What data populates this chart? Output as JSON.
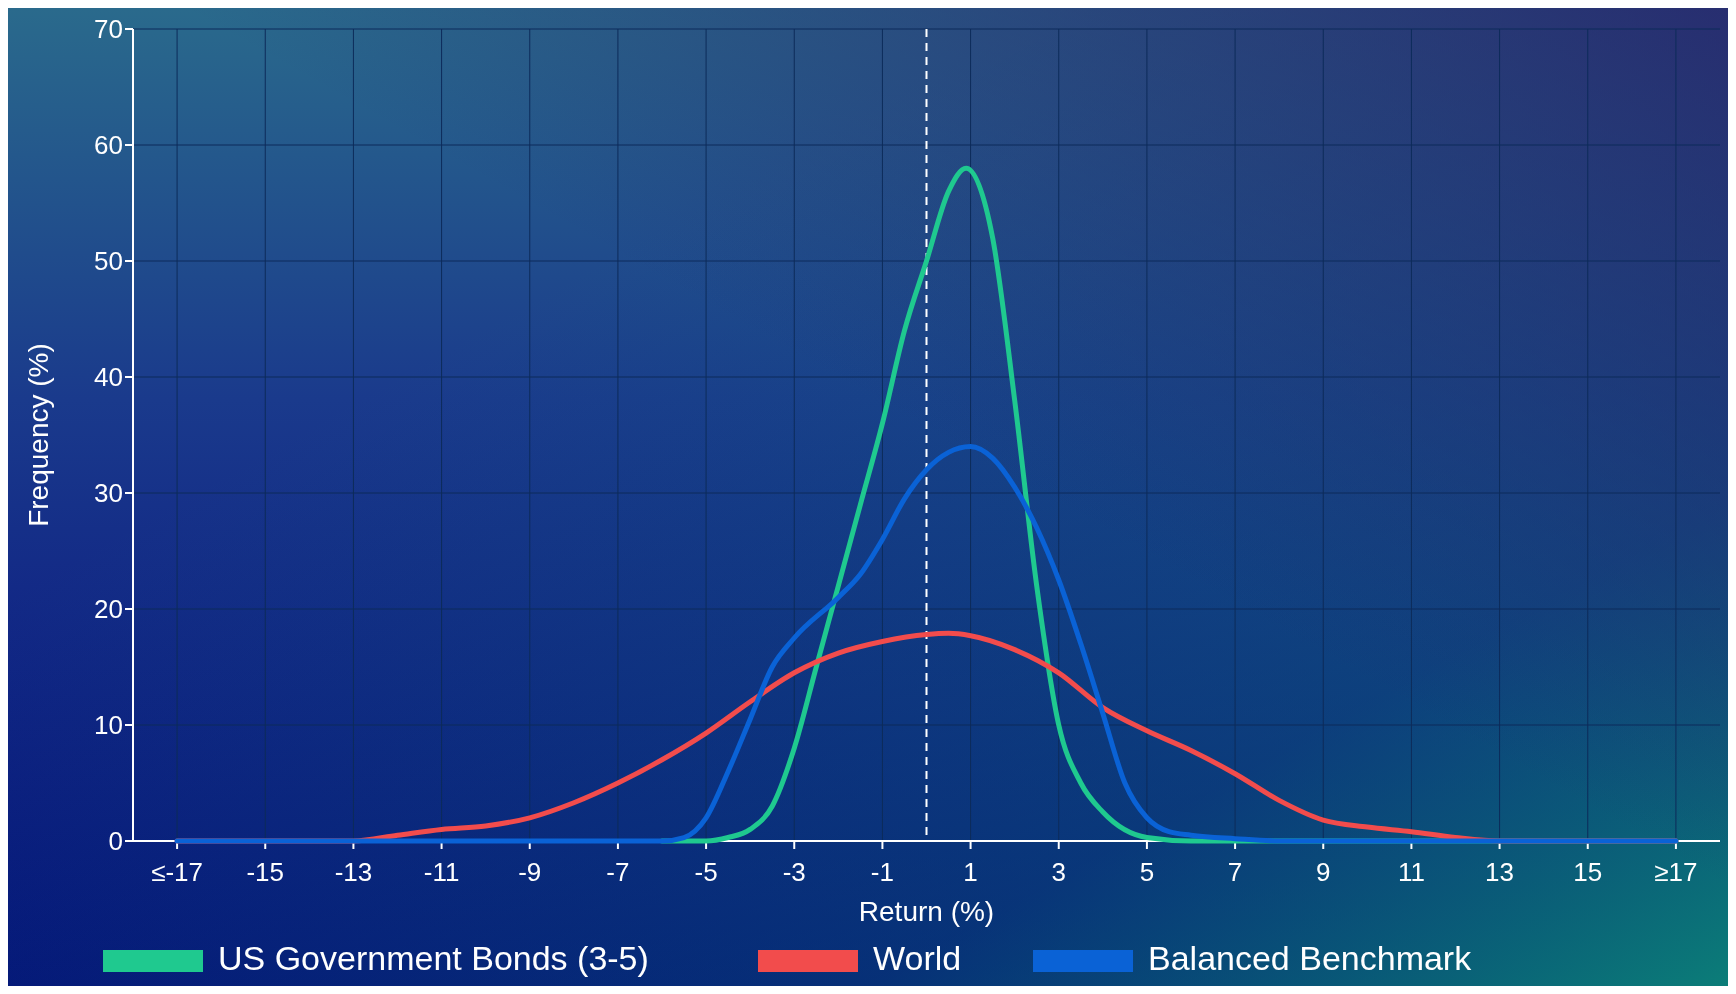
{
  "chart_data": {
    "type": "line",
    "xlabel": "Return (%)",
    "ylabel": "Frequency (%)",
    "xlim": [
      -18,
      18
    ],
    "ylim": [
      0,
      70
    ],
    "yticks": [
      0,
      10,
      20,
      30,
      40,
      50,
      60,
      70
    ],
    "xticks": [
      {
        "value": -17,
        "label": "≤-17"
      },
      -15,
      -13,
      -11,
      -9,
      -7,
      -5,
      -3,
      -1,
      1,
      3,
      5,
      7,
      9,
      11,
      13,
      15,
      {
        "value": 17,
        "label": "≥17"
      }
    ],
    "grid": true,
    "legend": "bottom",
    "line_style": "solid",
    "marker": "none",
    "ref_lines": [
      {
        "axis": "x",
        "value": 0,
        "color": "#ffffff",
        "line_style": "dashed"
      }
    ],
    "series": [
      {
        "name": "US Government Bonds (3-5)",
        "color": "#1fc98f",
        "x": [
          -6,
          -5,
          -4.5,
          -4,
          -3.5,
          -3,
          -2.5,
          -2,
          -1.5,
          -1,
          -0.5,
          0,
          0.5,
          0.9,
          1.5,
          2,
          2.5,
          3,
          3.5,
          4,
          5,
          6,
          9,
          13,
          17
        ],
        "values": [
          0,
          0,
          0.3,
          1,
          3,
          8,
          15,
          22,
          29,
          36,
          44,
          50,
          56,
          58,
          52,
          38,
          22,
          10,
          5,
          2.5,
          0.3,
          0,
          0,
          0,
          0
        ]
      },
      {
        "name": "World",
        "color": "#f24c4c",
        "x": [
          -17,
          -13,
          -12,
          -11,
          -10,
          -9,
          -8,
          -7,
          -6,
          -5,
          -4,
          -3,
          -2,
          -1,
          0,
          0.5,
          1,
          2,
          3,
          4,
          5,
          6,
          7,
          8,
          9,
          10,
          11,
          12,
          13,
          17
        ],
        "values": [
          0,
          0,
          0.5,
          1,
          1.3,
          2,
          3.3,
          5,
          7,
          9.3,
          12,
          14.5,
          16.2,
          17.2,
          17.8,
          17.9,
          17.7,
          16.5,
          14.5,
          11.5,
          9.5,
          7.8,
          5.8,
          3.5,
          1.8,
          1.2,
          0.8,
          0.3,
          0,
          0
        ]
      },
      {
        "name": "Balanced Benchmark",
        "color": "#0a62d6",
        "x": [
          -17,
          -13,
          -9,
          -6,
          -5.5,
          -5,
          -4.5,
          -4,
          -3.5,
          -3,
          -2,
          -1.5,
          -1,
          -0.5,
          0,
          0.5,
          1,
          1.5,
          2,
          2.5,
          3,
          3.5,
          4,
          4.5,
          5,
          5.5,
          6,
          7,
          8,
          13,
          17
        ],
        "values": [
          0,
          0,
          0,
          0,
          0.3,
          2,
          6,
          10.5,
          15,
          17.5,
          21,
          23,
          26,
          29.5,
          32,
          33.5,
          34,
          33,
          30.5,
          27,
          22.5,
          17,
          11,
          5,
          2,
          0.8,
          0.5,
          0.2,
          0,
          0,
          0
        ]
      }
    ]
  }
}
